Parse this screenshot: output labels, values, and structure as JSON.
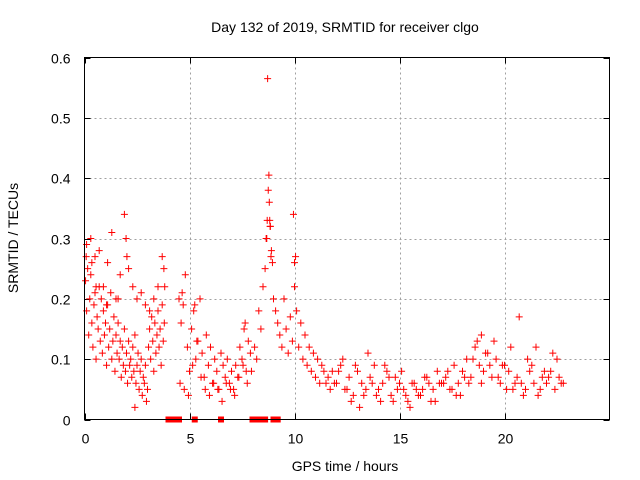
{
  "chart_data": {
    "type": "scatter",
    "title": "Day 132 of 2019, SRMTID for receiver clgo",
    "xlabel": "GPS time / hours",
    "ylabel": "SRMTID / TECUs",
    "xlim": [
      0,
      25
    ],
    "ylim": [
      0,
      0.6
    ],
    "xticks": [
      "0",
      "5",
      "10",
      "15",
      "20"
    ],
    "yticks": [
      "0",
      "0.1",
      "0.2",
      "0.3",
      "0.4",
      "0.5",
      "0.6"
    ],
    "grid": true,
    "marker": "+",
    "color": "#ff0000",
    "series": [
      {
        "name": "SRMTID",
        "x": [
          0.05,
          0.1,
          0.15,
          0.2,
          0.25,
          0.3,
          0.35,
          0.4,
          0.45,
          0.5,
          0.55,
          0.6,
          0.65,
          0.7,
          0.75,
          0.8,
          0.85,
          0.9,
          0.95,
          1.0,
          1.05,
          1.1,
          1.15,
          1.2,
          1.25,
          1.3,
          1.35,
          1.4,
          1.45,
          1.5,
          1.55,
          1.6,
          1.65,
          1.7,
          1.75,
          1.8,
          1.85,
          1.9,
          1.95,
          2.0,
          2.05,
          2.1,
          2.15,
          2.2,
          2.25,
          2.3,
          2.35,
          2.4,
          2.45,
          2.5,
          2.55,
          2.6,
          2.65,
          2.7,
          2.75,
          2.8,
          2.85,
          2.9,
          2.95,
          3.0,
          3.05,
          3.1,
          3.15,
          3.2,
          3.25,
          3.3,
          3.35,
          3.4,
          3.45,
          3.5,
          3.55,
          3.6,
          3.65,
          3.7,
          3.75,
          3.8,
          0.1,
          0.3,
          0.5,
          0.7,
          0.9,
          1.1,
          1.3,
          1.5,
          1.7,
          1.9,
          2.1,
          2.3,
          2.5,
          2.7,
          2.9,
          3.1,
          3.3,
          3.5,
          3.7,
          0.08,
          0.35,
          0.55,
          1.05,
          1.6,
          1.98,
          2.02,
          2.4,
          3.78,
          3.82,
          4.5,
          4.6,
          4.7,
          4.8,
          4.9,
          5.0,
          5.1,
          5.2,
          5.3,
          5.4,
          5.5,
          5.6,
          5.7,
          5.8,
          5.9,
          6.0,
          6.1,
          6.2,
          6.3,
          6.4,
          6.5,
          6.6,
          6.7,
          6.8,
          6.9,
          7.0,
          7.1,
          7.2,
          7.3,
          7.4,
          7.5,
          7.6,
          7.7,
          7.8,
          7.9,
          4.55,
          4.75,
          4.95,
          5.15,
          5.35,
          5.55,
          5.75,
          5.95,
          6.15,
          6.35,
          6.55,
          6.75,
          6.95,
          7.15,
          7.35,
          7.55,
          7.75,
          7.95,
          4.65,
          5.25,
          7.65,
          8.1,
          8.2,
          8.3,
          8.4,
          8.5,
          8.6,
          8.65,
          8.7,
          8.75,
          8.8,
          8.85,
          8.9,
          8.95,
          9.0,
          9.1,
          9.2,
          9.3,
          9.4,
          9.5,
          9.6,
          9.7,
          9.8,
          9.9,
          10.0,
          10.1,
          10.2,
          10.3,
          10.4,
          10.5,
          10.6,
          10.7,
          10.8,
          10.9,
          11.0,
          11.1,
          11.2,
          11.3,
          11.4,
          11.5,
          11.6,
          11.7,
          11.8,
          11.9,
          8.72,
          8.78,
          8.82,
          8.88,
          9.95,
          10.05,
          10.0,
          8.68,
          8.84,
          12.0,
          12.2,
          12.4,
          12.6,
          12.8,
          13.0,
          13.2,
          13.4,
          13.6,
          13.8,
          14.0,
          14.2,
          14.4,
          14.6,
          14.8,
          15.0,
          15.2,
          15.4,
          15.6,
          15.8,
          16.0,
          16.2,
          16.4,
          16.6,
          16.8,
          17.0,
          17.2,
          17.4,
          17.6,
          17.8,
          18.0,
          18.2,
          18.4,
          18.6,
          18.8,
          19.0,
          19.2,
          19.4,
          19.6,
          19.8,
          20.0,
          20.2,
          20.4,
          20.6,
          20.8,
          21.0,
          21.2,
          21.4,
          21.6,
          21.8,
          22.0,
          22.2,
          22.4,
          22.6,
          22.8,
          12.1,
          12.5,
          12.9,
          13.3,
          13.7,
          14.1,
          14.5,
          14.9,
          15.3,
          15.7,
          16.1,
          16.5,
          16.9,
          17.3,
          17.7,
          18.1,
          18.5,
          18.9,
          19.3,
          19.7,
          20.1,
          20.5,
          20.9,
          21.3,
          21.7,
          22.1,
          22.5,
          12.3,
          13.5,
          14.3,
          15.1,
          16.3,
          17.1,
          18.7,
          19.1,
          19.9,
          20.3,
          21.1,
          21.9,
          22.3,
          12.7,
          13.1,
          13.9,
          14.7,
          15.5,
          15.9,
          16.7,
          17.5,
          17.9,
          18.3,
          18.9,
          19.5,
          20.7,
          21.5,
          22.7
        ],
        "y": [
          0.23,
          0.18,
          0.25,
          0.14,
          0.2,
          0.24,
          0.16,
          0.12,
          0.19,
          0.21,
          0.1,
          0.17,
          0.15,
          0.22,
          0.13,
          0.2,
          0.11,
          0.18,
          0.14,
          0.16,
          0.09,
          0.19,
          0.12,
          0.15,
          0.21,
          0.1,
          0.13,
          0.17,
          0.08,
          0.14,
          0.11,
          0.16,
          0.1,
          0.13,
          0.07,
          0.12,
          0.09,
          0.15,
          0.08,
          0.11,
          0.06,
          0.13,
          0.09,
          0.1,
          0.07,
          0.12,
          0.08,
          0.14,
          0.06,
          0.09,
          0.11,
          0.05,
          0.08,
          0.1,
          0.04,
          0.07,
          0.06,
          0.09,
          0.03,
          0.05,
          0.12,
          0.15,
          0.1,
          0.17,
          0.13,
          0.08,
          0.16,
          0.11,
          0.14,
          0.18,
          0.12,
          0.15,
          0.09,
          0.19,
          0.13,
          0.16,
          0.29,
          0.3,
          0.27,
          0.28,
          0.22,
          0.26,
          0.31,
          0.2,
          0.24,
          0.34,
          0.25,
          0.22,
          0.2,
          0.21,
          0.19,
          0.18,
          0.2,
          0.22,
          0.27,
          0.27,
          0.26,
          0.22,
          0.19,
          0.2,
          0.3,
          0.27,
          0.02,
          0.25,
          0.22,
          0.2,
          0.16,
          0.19,
          0.24,
          0.12,
          0.08,
          0.15,
          0.18,
          0.1,
          0.13,
          0.2,
          0.11,
          0.07,
          0.14,
          0.09,
          0.12,
          0.06,
          0.1,
          0.08,
          0.05,
          0.11,
          0.09,
          0.07,
          0.1,
          0.06,
          0.08,
          0.05,
          0.09,
          0.07,
          0.12,
          0.1,
          0.15,
          0.08,
          0.13,
          0.11,
          0.06,
          0.05,
          0.04,
          0.09,
          0.13,
          0.07,
          0.05,
          0.04,
          0.06,
          0.05,
          0.03,
          0.06,
          0.05,
          0.04,
          0.07,
          0.09,
          0.06,
          0.08,
          0.21,
          0.19,
          0.16,
          0.12,
          0.1,
          0.18,
          0.15,
          0.22,
          0.25,
          0.3,
          0.33,
          0.38,
          0.36,
          0.32,
          0.28,
          0.26,
          0.2,
          0.18,
          0.16,
          0.14,
          0.12,
          0.2,
          0.15,
          0.11,
          0.17,
          0.13,
          0.22,
          0.18,
          0.12,
          0.16,
          0.1,
          0.14,
          0.09,
          0.12,
          0.08,
          0.11,
          0.07,
          0.1,
          0.06,
          0.09,
          0.08,
          0.06,
          0.07,
          0.05,
          0.08,
          0.06,
          0.565,
          0.405,
          0.33,
          0.27,
          0.34,
          0.27,
          0.26,
          0.3,
          0.32,
          0.06,
          0.09,
          0.05,
          0.07,
          0.04,
          0.08,
          0.06,
          0.05,
          0.07,
          0.09,
          0.05,
          0.06,
          0.08,
          0.04,
          0.07,
          0.06,
          0.05,
          0.03,
          0.06,
          0.05,
          0.04,
          0.07,
          0.06,
          0.05,
          0.08,
          0.06,
          0.07,
          0.05,
          0.09,
          0.06,
          0.08,
          0.1,
          0.07,
          0.12,
          0.09,
          0.08,
          0.11,
          0.07,
          0.1,
          0.06,
          0.09,
          0.08,
          0.05,
          0.07,
          0.06,
          0.05,
          0.08,
          0.06,
          0.04,
          0.07,
          0.06,
          0.08,
          0.05,
          0.07,
          0.06,
          0.08,
          0.05,
          0.09,
          0.04,
          0.06,
          0.03,
          0.07,
          0.05,
          0.04,
          0.06,
          0.05,
          0.03,
          0.06,
          0.08,
          0.04,
          0.07,
          0.1,
          0.06,
          0.09,
          0.07,
          0.05,
          0.06,
          0.04,
          0.09,
          0.05,
          0.07,
          0.1,
          0.1,
          0.11,
          0.09,
          0.08,
          0.07,
          0.06,
          0.13,
          0.11,
          0.09,
          0.12,
          0.1,
          0.08,
          0.11,
          0.03,
          0.02,
          0.04,
          0.03,
          0.02,
          0.04,
          0.03,
          0.05,
          0.04,
          0.06,
          0.14,
          0.13,
          0.17,
          0.12,
          0.06
        ]
      }
    ],
    "gap_markers": {
      "y": 0,
      "x": [
        4.0,
        4.1,
        4.2,
        4.3,
        4.4,
        4.5,
        5.25,
        6.5,
        8.0,
        8.1,
        8.2,
        8.3,
        8.4,
        8.5,
        8.6,
        9.0,
        9.1,
        9.2
      ]
    }
  }
}
